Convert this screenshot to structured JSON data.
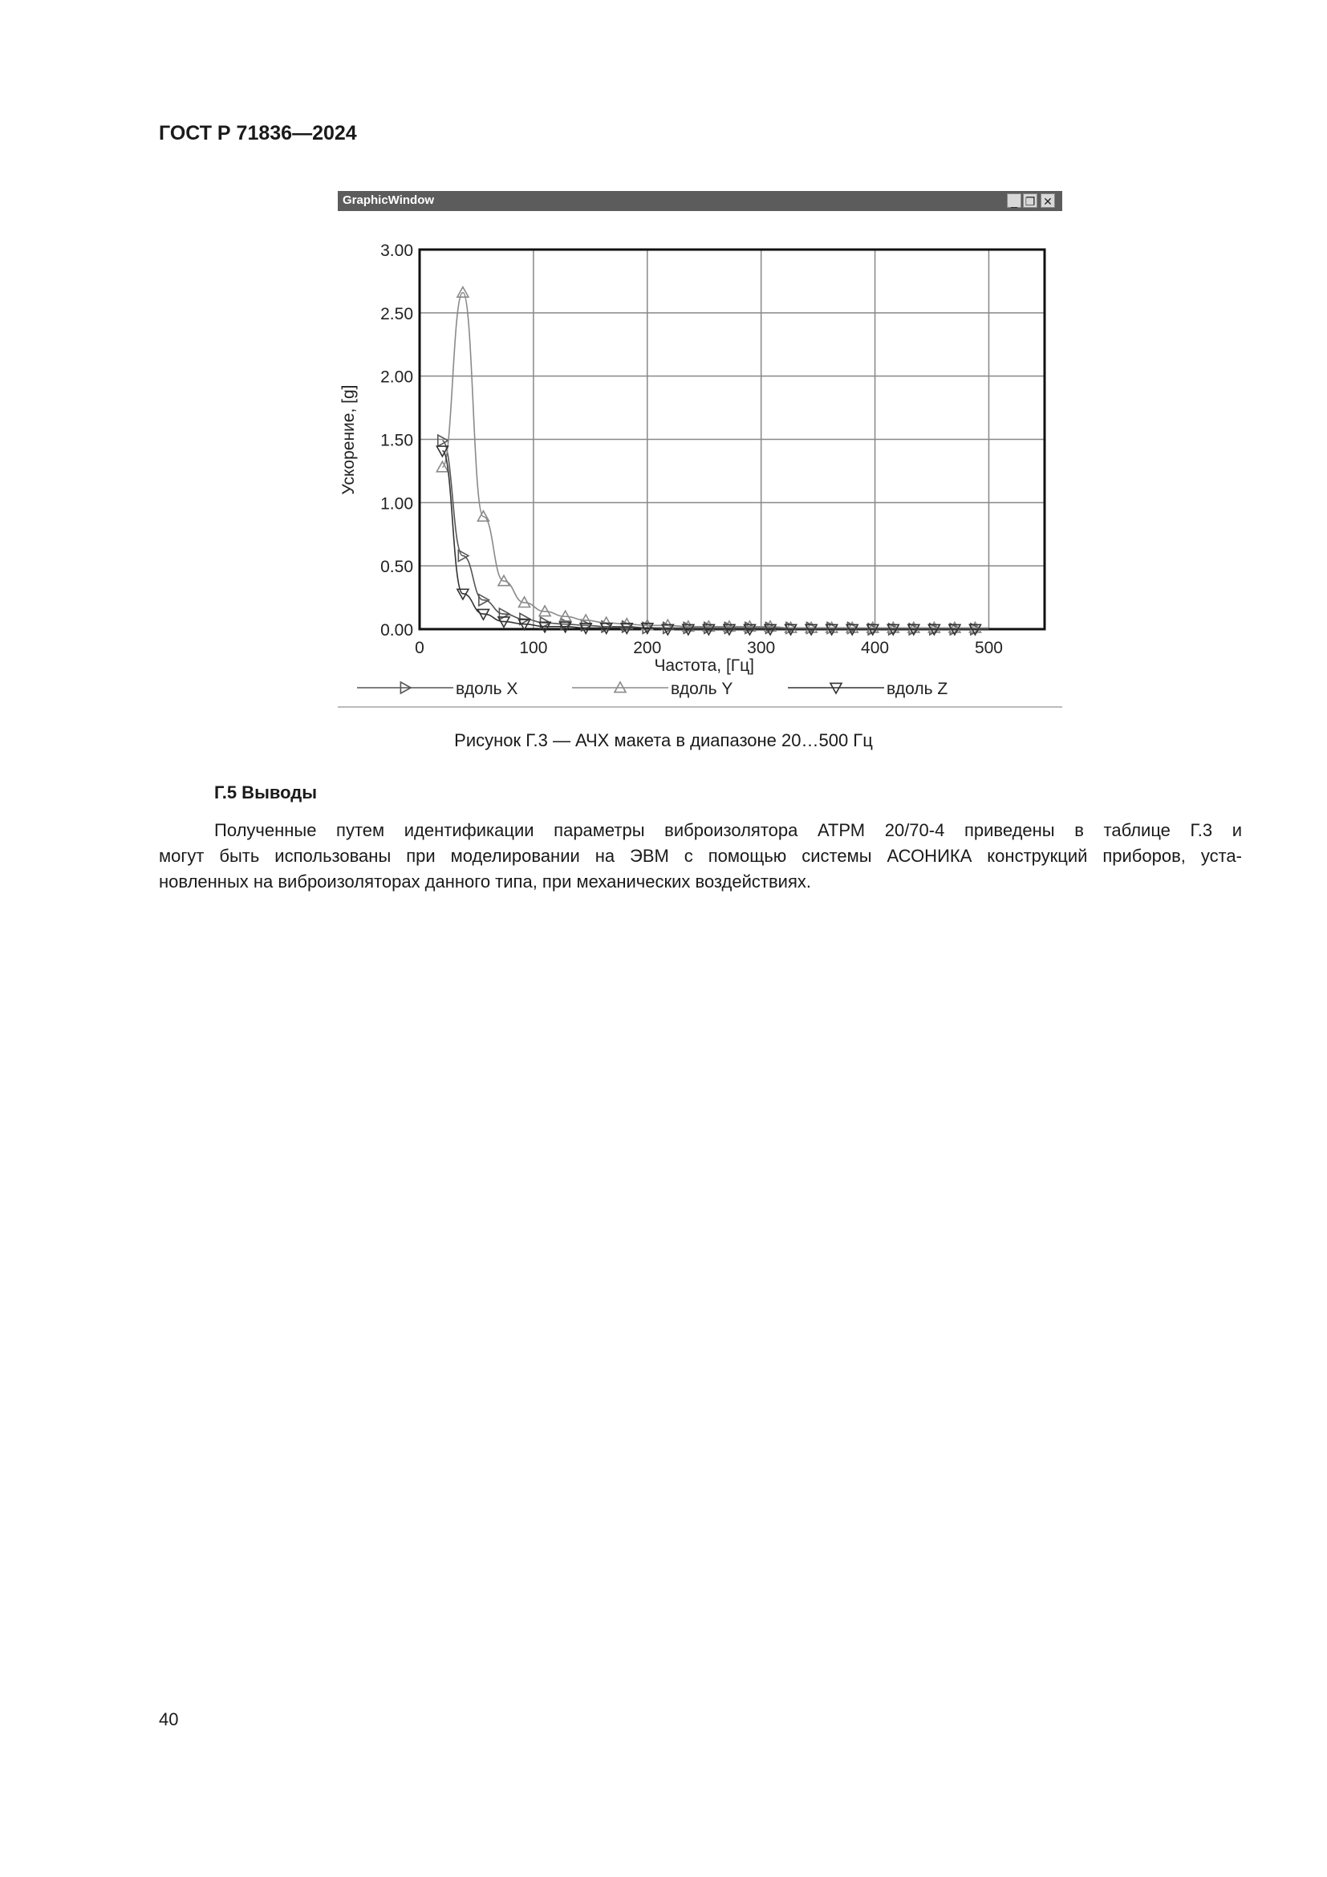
{
  "header": {
    "doc_id": "ГОСТ Р 71836—2024"
  },
  "window": {
    "title": "GraphicWindow",
    "buttons": [
      "minimize",
      "restore",
      "close"
    ]
  },
  "chart_data": {
    "type": "line",
    "title": "",
    "xlabel": "Частота, [Гц]",
    "ylabel": "Ускорение, [g]",
    "xlim": [
      0,
      549
    ],
    "ylim": [
      0,
      3.0
    ],
    "xticks": [
      "0",
      "100",
      "200",
      "300",
      "400",
      "500"
    ],
    "yticks": [
      "0.00",
      "0.50",
      "1.00",
      "1.50",
      "2.00",
      "2.50",
      "3.00"
    ],
    "grid": true,
    "legend_placement": "bottom",
    "x": [
      20,
      38,
      56,
      74,
      92,
      110,
      128,
      146,
      164,
      182,
      200,
      218,
      236,
      254,
      272,
      290,
      308,
      326,
      344,
      362,
      380,
      398,
      416,
      434,
      452,
      470,
      488
    ],
    "series": [
      {
        "name": "вдоль X",
        "marker": "triangle-right",
        "color": "#555555",
        "values": [
          1.49,
          0.58,
          0.23,
          0.12,
          0.08,
          0.05,
          0.04,
          0.03,
          0.02,
          0.02,
          0.01,
          0.01,
          0.01,
          0.01,
          0.01,
          0.01,
          0.01,
          0.01,
          0.01,
          0.01,
          0.01,
          0.0,
          0.0,
          0.0,
          0.0,
          0.0,
          0.0
        ]
      },
      {
        "name": "вдоль Y",
        "marker": "triangle-up",
        "color": "#8a8a8a",
        "values": [
          1.28,
          2.66,
          0.89,
          0.38,
          0.21,
          0.14,
          0.1,
          0.07,
          0.05,
          0.04,
          0.03,
          0.03,
          0.02,
          0.02,
          0.02,
          0.02,
          0.02,
          0.01,
          0.01,
          0.01,
          0.01,
          0.01,
          0.01,
          0.01,
          0.01,
          0.01,
          0.01
        ]
      },
      {
        "name": "вдоль Z",
        "marker": "triangle-down",
        "color": "#333333",
        "values": [
          1.41,
          0.28,
          0.12,
          0.06,
          0.04,
          0.02,
          0.02,
          0.01,
          0.01,
          0.01,
          0.01,
          0.0,
          0.0,
          0.0,
          0.0,
          0.0,
          0.0,
          0.0,
          0.0,
          0.0,
          0.0,
          0.0,
          0.0,
          0.0,
          0.0,
          0.0,
          0.0
        ]
      }
    ]
  },
  "caption": "Рисунок Г.3 — АЧХ макета в диапазоне 20…500 Гц",
  "section": {
    "title": "Г.5  Выводы",
    "lines": [
      "Полученные путем идентификации параметры виброизолятора АТРМ 20/70-4 приведены в таблице Г.3 и",
      "могут быть использованы при моделировании на ЭВМ с помощью системы АСОНИКА конструкций приборов, уста-",
      "новленных на виброизоляторах данного типа, при механических воздействиях."
    ]
  },
  "page_number": "40"
}
